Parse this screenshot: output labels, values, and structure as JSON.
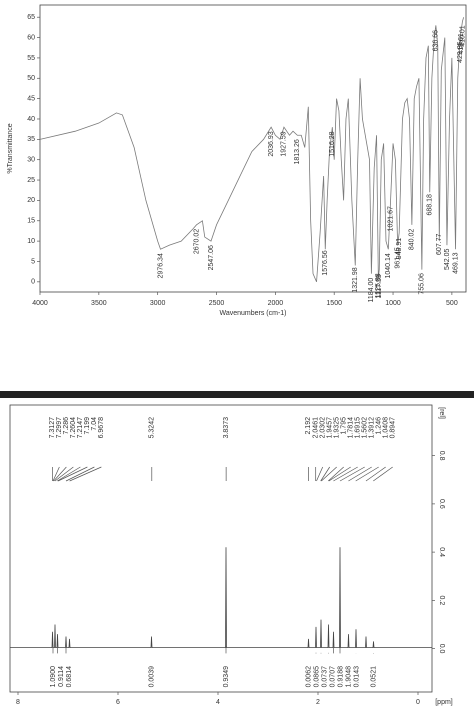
{
  "chart_data": [
    {
      "type": "line",
      "y_title": "%Transmittance",
      "x_title": "Wavenumbers (cm-1)",
      "xlim": [
        4000,
        380
      ],
      "ylim": [
        -2.5,
        68
      ],
      "xticks": [
        4000,
        3500,
        3000,
        2500,
        2000,
        1500,
        1000,
        500
      ],
      "yticks": [
        0,
        5,
        10,
        15,
        20,
        25,
        30,
        35,
        40,
        45,
        50,
        55,
        60,
        65
      ],
      "y_axis_side": "left",
      "x": [
        4000,
        3700,
        3500,
        3350,
        3300,
        3200,
        3100,
        3000,
        2976,
        2900,
        2800,
        2700,
        2670,
        2620,
        2600,
        2547,
        2500,
        2400,
        2300,
        2200,
        2100,
        2036,
        2000,
        1960,
        1927,
        1880,
        1850,
        1813,
        1780,
        1750,
        1720,
        1700,
        1680,
        1650,
        1620,
        1590,
        1576,
        1560,
        1540,
        1516,
        1500,
        1480,
        1460,
        1440,
        1420,
        1400,
        1380,
        1350,
        1321,
        1300,
        1280,
        1260,
        1200,
        1184,
        1160,
        1140,
        1125,
        1117,
        1100,
        1080,
        1060,
        1040,
        1021,
        1000,
        980,
        961,
        948,
        920,
        900,
        880,
        860,
        840,
        820,
        800,
        780,
        755,
        740,
        720,
        700,
        688,
        670,
        650,
        636,
        620,
        607,
        590,
        560,
        542,
        520,
        500,
        469,
        450,
        430,
        420,
        410,
        400
      ],
      "series": [
        {
          "color": "#7a7a7a",
          "values": [
            35,
            37,
            39,
            41.5,
            41,
            33,
            20,
            10,
            8,
            9,
            10,
            13,
            14,
            15,
            11,
            10,
            14,
            20,
            26,
            32,
            35,
            38,
            36,
            35,
            38,
            36,
            37,
            36,
            36,
            33,
            43,
            15,
            2,
            0,
            12,
            26,
            8,
            20,
            32,
            38,
            30,
            45,
            42,
            30,
            20,
            40,
            45,
            20,
            4,
            30,
            50,
            40,
            30,
            2,
            28,
            36,
            1,
            3,
            30,
            34,
            10,
            8,
            20,
            34,
            30,
            9,
            12,
            40,
            44,
            45,
            40,
            14,
            45,
            48,
            50,
            3,
            40,
            55,
            58,
            22,
            50,
            60,
            63,
            58,
            10,
            52,
            60,
            9,
            40,
            55,
            8,
            50,
            60,
            62,
            64,
            65
          ]
        }
      ],
      "peaks": [
        2976.34,
        2670.02,
        2547.06,
        2036.93,
        1927.59,
        1813.26,
        1576.56,
        1516.28,
        1321.98,
        {
          "value": 1184,
          "label": "1184.00"
        },
        1125.88,
        1117.55,
        1040.14,
        1021.67,
        961.45,
        948.91,
        840.02,
        755.06,
        688.18,
        636.66,
        607.77,
        542.05,
        469.13,
        429.85,
        419.61,
        410.01
      ]
    },
    {
      "type": "line",
      "y_title": "[rel]",
      "x_title": "[ppm]",
      "xlim": [
        8.16,
        -0.28
      ],
      "ylim": [
        -0.18,
        1.01
      ],
      "xticks": [
        8,
        6,
        4,
        2,
        0
      ],
      "yticks": [
        {
          "value": 0,
          "label": "0.0"
        },
        0.2,
        0.4,
        0.6,
        0.8
      ],
      "y_axis_side": "right",
      "x": [
        8.16,
        7.32,
        7.31,
        7.3,
        7.27,
        7.26,
        7.25,
        7.22,
        7.21,
        7.2,
        7.05,
        7.04,
        7.03,
        6.98,
        6.97,
        6.96,
        5.34,
        5.33,
        5.32,
        3.85,
        3.84,
        3.83,
        2.2,
        2.19,
        2.18,
        2.05,
        2.04,
        2.03,
        1.95,
        1.94,
        1.93,
        1.8,
        1.79,
        1.78,
        1.7,
        1.69,
        1.68,
        1.57,
        1.56,
        1.55,
        1.4,
        1.39,
        1.38,
        1.25,
        1.24,
        1.23,
        1.05,
        1.04,
        1.03,
        0.9,
        0.89,
        0.88,
        -0.28
      ],
      "series": [
        {
          "color": "#444444",
          "values": [
            0.004,
            0.004,
            0.07,
            0.004,
            0.004,
            0.1,
            0.004,
            0.004,
            0.06,
            0.004,
            0.004,
            0.05,
            0.004,
            0.004,
            0.04,
            0.004,
            0.004,
            0.05,
            0.004,
            0.004,
            0.42,
            0.004,
            0.004,
            0.04,
            0.004,
            0.004,
            0.09,
            0.004,
            0.004,
            0.12,
            0.004,
            0.004,
            0.1,
            0.004,
            0.004,
            0.07,
            0.004,
            0.004,
            0.42,
            0.004,
            0.004,
            0.06,
            0.004,
            0.004,
            0.08,
            0.004,
            0.004,
            0.05,
            0.004,
            0.004,
            0.03,
            0.004,
            0.004
          ]
        }
      ],
      "peaks": [
        7.3127,
        7.2997,
        7.286,
        7.2604,
        7.2147,
        7.199,
        7.04,
        6.9678,
        5.3242,
        3.8373,
        2.192,
        2.0461,
        2.0302,
        1.9457,
        1.9325,
        1.795,
        1.7814,
        1.6915,
        1.5602,
        1.3912,
        1.246,
        1.0408,
        0.8947
      ],
      "integrals": {
        "x": [
          7.3,
          7.21,
          7.04,
          5.33,
          3.84,
          2.19,
          2.04,
          1.94,
          1.79,
          1.69,
          1.56,
          1.24,
          0.89
        ],
        "values": [
          1.09,
          0.9114,
          0.6814,
          0.0039,
          0.9349,
          0.0062,
          0.0865,
          0.0737,
          0.0707,
          0.9188,
          1.9048,
          0.0143,
          0.0521
        ],
        "value_labels": [
          "1.0900",
          "0.9114",
          "0.6814",
          "0.0039",
          "0.9349",
          "0.0062",
          "0.0865",
          "0.0737",
          "0.0707",
          "0.9188",
          "1.9048",
          "0.0143",
          "0.0521"
        ]
      }
    }
  ]
}
